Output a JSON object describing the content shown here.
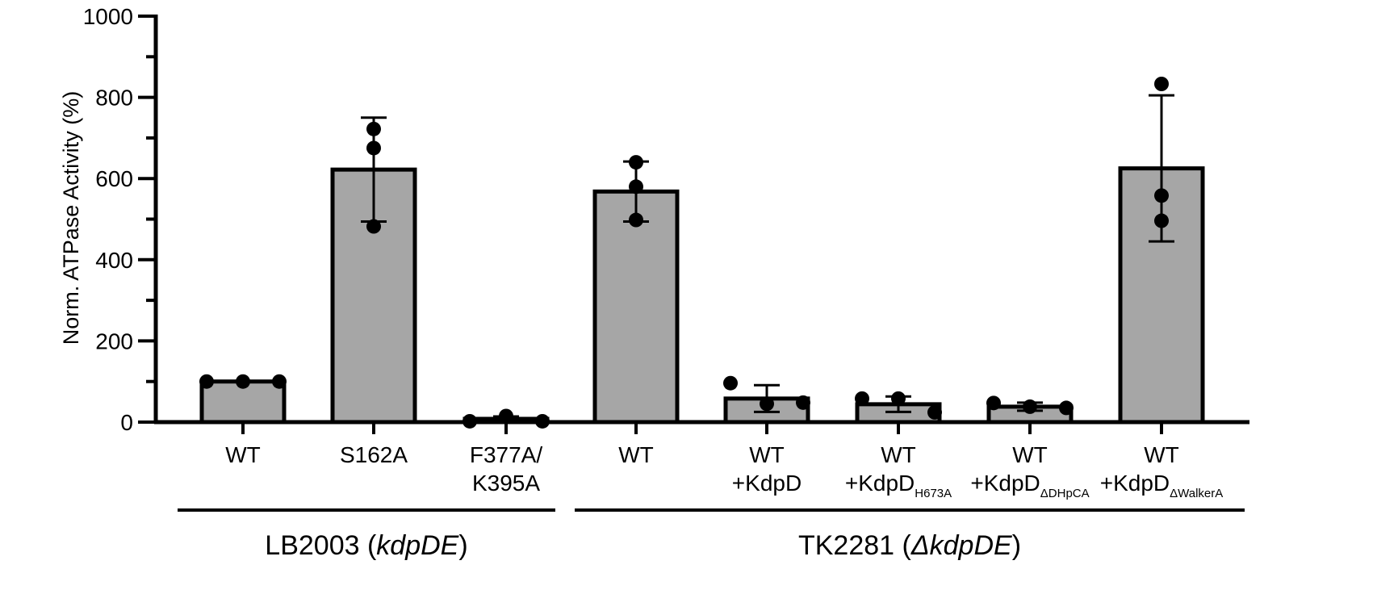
{
  "chart_data": {
    "type": "bar",
    "ylabel": "Norm. ATPase Activity (%)",
    "ylim": [
      0,
      1000
    ],
    "yticks": [
      0,
      200,
      400,
      600,
      800,
      1000
    ],
    "categories": [
      {
        "line1": "WT",
        "line2": "",
        "sub": ""
      },
      {
        "line1": "S162A",
        "line2": "",
        "sub": ""
      },
      {
        "line1": "F377A/",
        "line2": "K395A",
        "sub": ""
      },
      {
        "line1": "WT",
        "line2": "",
        "sub": ""
      },
      {
        "line1": "WT",
        "line2": "+KdpD",
        "sub": ""
      },
      {
        "line1": "WT",
        "line2": "+KdpD",
        "sub": "H673A"
      },
      {
        "line1": "WT",
        "line2": "+KdpD",
        "sub": "ΔDHpCA"
      },
      {
        "line1": "WT",
        "line2": "+KdpD",
        "sub": "ΔWalkerA"
      }
    ],
    "values": [
      100,
      622,
      8,
      568,
      58,
      44,
      38,
      625
    ],
    "errors": [
      0,
      128,
      6,
      74,
      33,
      19,
      10,
      180
    ],
    "points": [
      [
        100,
        100,
        100
      ],
      [
        722,
        675,
        482
      ],
      [
        2,
        15,
        2
      ],
      [
        640,
        580,
        498
      ],
      [
        96,
        45,
        48
      ],
      [
        58,
        58,
        24
      ],
      [
        47,
        38,
        35
      ],
      [
        833,
        558,
        496
      ]
    ],
    "groups": [
      {
        "name": "LB2003 (",
        "italic": "kdpDE",
        "close": ")"
      },
      {
        "name": "TK2281 (",
        "italic": "ΔkdpDE",
        "close": ")"
      }
    ],
    "colors": {
      "bar_fill": "#a6a6a6",
      "stroke": "#000000"
    }
  }
}
